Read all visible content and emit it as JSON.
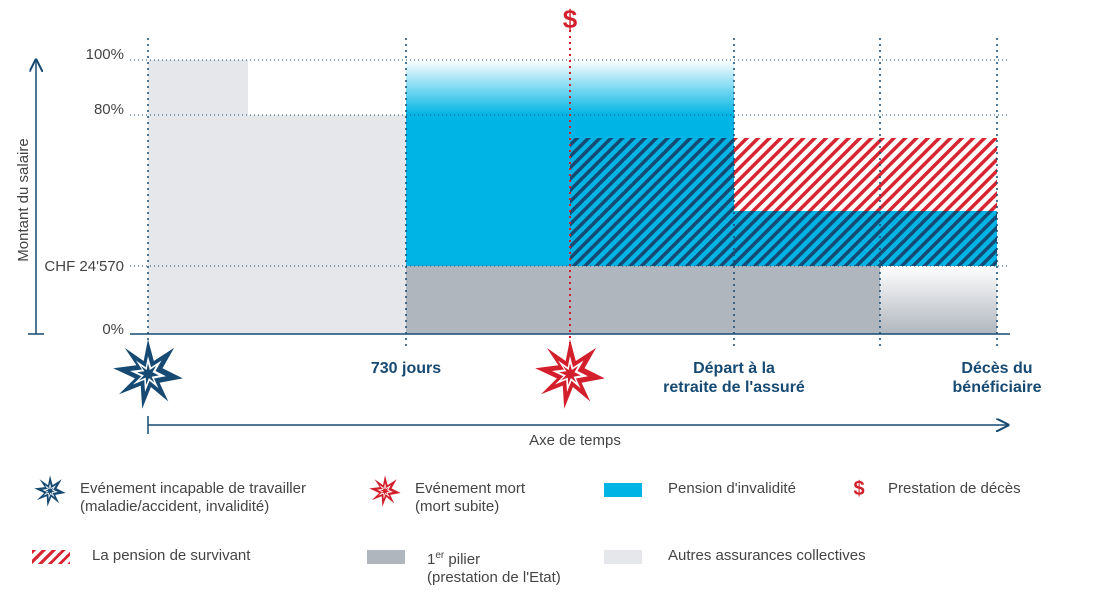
{
  "axis": {
    "y_title": "Montant du salaire",
    "y_ticks": [
      "100%",
      "80%",
      "CHF 24'570",
      "0%"
    ],
    "x_title": "Axe de temps"
  },
  "timeline": {
    "m730": "730 jours",
    "retraite_line1": "Départ à la",
    "retraite_line2": "retraite de l'assuré",
    "deces_line1": "Décès du",
    "deces_line2": "bénéficiaire",
    "dollar_marker": "$"
  },
  "colors": {
    "invalidite": "#00b4e5",
    "survivant": "#d72631",
    "pilier": "#b0b6be",
    "autres": "#e5e7ea",
    "navy": "#164a73"
  },
  "legend": {
    "incapable_line1": "Evénement incapable de travailler",
    "incapable_line2": "(maladie/accident, invalidité)",
    "mort_line1": "Evénement mort",
    "mort_line2": "(mort subite)",
    "invalidite": "Pension d'invalidité",
    "deces": "Prestation de décès",
    "dollar": "$",
    "survivant": "La pension de survivant",
    "pilier_num": "1",
    "pilier_sup": "er",
    "pilier_word": " pilier",
    "pilier_line2": "(prestation de l'Etat)",
    "autres": "Autres assurances collectives"
  }
}
